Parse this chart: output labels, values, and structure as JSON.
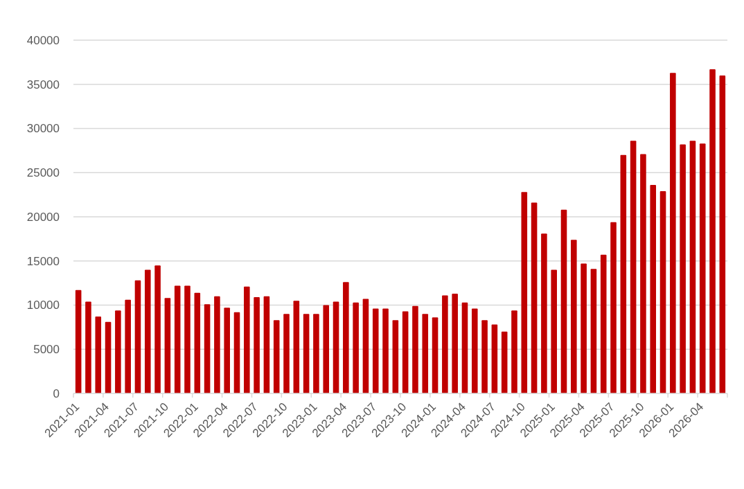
{
  "chart_data": {
    "type": "bar",
    "categories": [
      "2021-01",
      null,
      null,
      "2021-04",
      null,
      null,
      "2021-07",
      null,
      null,
      "2021-10",
      null,
      null,
      "2022-01",
      null,
      null,
      "2022-04",
      null,
      null,
      "2022-07",
      null,
      null,
      "2022-10",
      null,
      null,
      "2023-01",
      null,
      null,
      "2023-04",
      null,
      null,
      "2023-07",
      null,
      null,
      "2023-10",
      null,
      null,
      "2024-01",
      null,
      null,
      "2024-04",
      null,
      null,
      "2024-07",
      null,
      null,
      "2024-10",
      null,
      null,
      "2025-01",
      null,
      null,
      "2025-04",
      null,
      null,
      "2025-07",
      null,
      null,
      "2025-10",
      null,
      null,
      "2026-01",
      null,
      null,
      "2026-04",
      null,
      null
    ],
    "values": [
      11700,
      10400,
      8700,
      8100,
      9400,
      10600,
      12800,
      14000,
      14500,
      10800,
      12200,
      12200,
      11400,
      10100,
      11000,
      9700,
      9200,
      12100,
      10900,
      11000,
      8300,
      9000,
      10500,
      9000,
      9000,
      10000,
      10400,
      12600,
      10300,
      10700,
      9600,
      9600,
      8300,
      9300,
      9900,
      9000,
      8600,
      11100,
      11300,
      10300,
      9600,
      8300,
      7800,
      7000,
      9400,
      22800,
      21600,
      18100,
      14000,
      20800,
      17400,
      14700,
      14100,
      15700,
      19400,
      27000,
      28600,
      27100,
      23600,
      22900,
      36300,
      28200,
      28600,
      28300,
      36700,
      36000
    ],
    "color": "#c00000",
    "ylim": [
      0,
      40000
    ],
    "yticks": [
      0,
      5000,
      10000,
      15000,
      20000,
      25000,
      30000,
      35000,
      40000
    ],
    "grid": "y"
  }
}
